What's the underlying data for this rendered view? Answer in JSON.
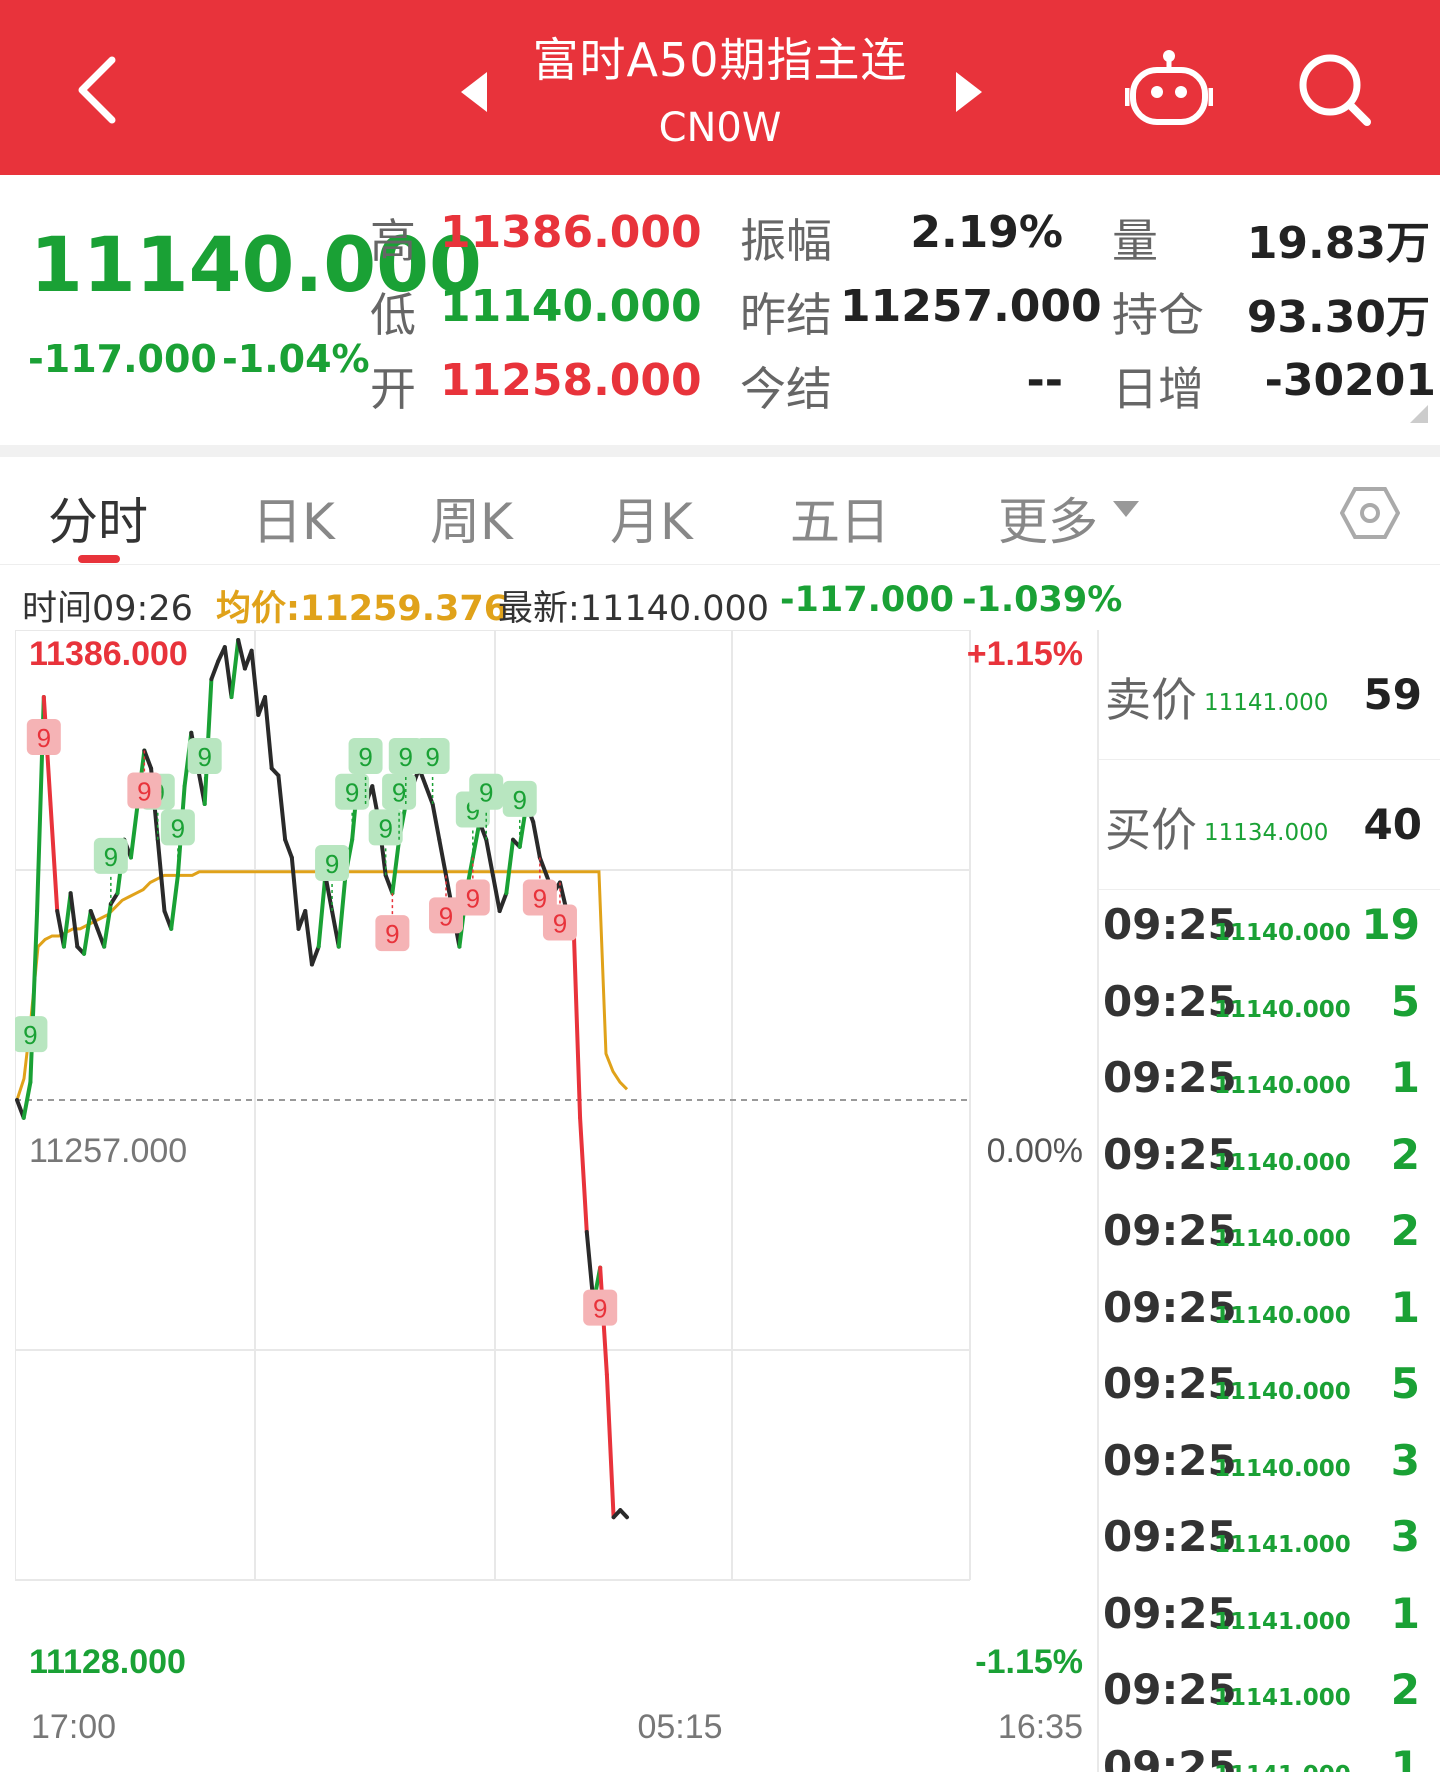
{
  "header": {
    "title": "富时A50期指主连",
    "subtitle": "CN0W",
    "icons": [
      "back-arrow",
      "prev-triangle",
      "next-triangle",
      "robot-assistant",
      "search"
    ],
    "bg_color": "#e8333b"
  },
  "quote": {
    "last": "11140.000",
    "change": "-117.000",
    "change_pct": "-1.04%",
    "rows": [
      {
        "label": "高",
        "value": "11386.000",
        "label2": "振幅",
        "value2": "2.19%",
        "label3": "量",
        "value3": "19.83万"
      },
      {
        "label": "低",
        "value": "11140.000",
        "label2": "昨结",
        "value2": "11257.000",
        "label3": "持仓",
        "value3": "93.30万"
      },
      {
        "label": "开",
        "value": "11258.000",
        "label2": "今结",
        "value2": "--",
        "label3": "日增",
        "value3": "-30201"
      }
    ]
  },
  "tabs": [
    "分时",
    "日K",
    "周K",
    "月K",
    "五日",
    "更多"
  ],
  "info": {
    "time": "时间09:26",
    "avg": "均价:11259.376",
    "latest": "最新:11140.000",
    "change": "-117.000",
    "change_pct": "-1.039%"
  },
  "chart_data": {
    "type": "line",
    "y_max_label": "11386.000",
    "y_mid_label": "11257.000",
    "y_min_label": "11128.000",
    "pct_max_label": "+1.15%",
    "pct_mid_label": "0.00%",
    "pct_min_label": "-1.15%",
    "x_labels": [
      "17:00",
      "05:15",
      "16:35"
    ],
    "ylim": [
      11128,
      11386
    ],
    "reference": 11257,
    "price": [
      11257,
      11252,
      11262,
      11310,
      11370,
      11340,
      11310,
      11300,
      11315,
      11300,
      11298,
      11310,
      11305,
      11300,
      11312,
      11315,
      11330,
      11325,
      11340,
      11355,
      11350,
      11330,
      11310,
      11305,
      11320,
      11345,
      11360,
      11350,
      11340,
      11375,
      11380,
      11384,
      11370,
      11386,
      11378,
      11383,
      11365,
      11370,
      11350,
      11348,
      11330,
      11325,
      11305,
      11310,
      11295,
      11300,
      11320,
      11310,
      11300,
      11320,
      11330,
      11350,
      11340,
      11345,
      11335,
      11320,
      11315,
      11330,
      11340,
      11345,
      11350,
      11345,
      11340,
      11330,
      11320,
      11310,
      11300,
      11315,
      11325,
      11335,
      11330,
      11320,
      11310,
      11315,
      11330,
      11328,
      11340,
      11335,
      11325,
      11320,
      11315,
      11318,
      11310,
      11308,
      11252,
      11220,
      11200,
      11210,
      11180,
      11140,
      11142,
      11140
    ],
    "avg_price": [
      11257,
      11263,
      11280,
      11300,
      11302,
      11303,
      11303,
      11304,
      11305,
      11305,
      11306,
      11307,
      11308,
      11309,
      11311,
      11313,
      11314,
      11315,
      11316,
      11318,
      11319,
      11320,
      11320,
      11320,
      11320,
      11320,
      11321,
      11321,
      11321,
      11321,
      11321,
      11321,
      11321,
      11321,
      11321,
      11321,
      11321,
      11321,
      11321,
      11321,
      11321,
      11321,
      11321,
      11321,
      11321,
      11321,
      11321,
      11321,
      11321,
      11321,
      11321,
      11321,
      11321,
      11321,
      11321,
      11321,
      11321,
      11321,
      11321,
      11321,
      11321,
      11321,
      11321,
      11321,
      11321,
      11321,
      11321,
      11321,
      11321,
      11321,
      11321,
      11321,
      11321,
      11321,
      11321,
      11321,
      11321,
      11321,
      11321,
      11321,
      11321,
      11321,
      11321,
      11321,
      11270,
      11265,
      11262,
      11260
    ],
    "top_markers": [
      2,
      14,
      21,
      24,
      28,
      47,
      50,
      52,
      55,
      57,
      58,
      62,
      68,
      70,
      75
    ],
    "bottom_markers": [
      4,
      19,
      56,
      64,
      68,
      78,
      81,
      87
    ],
    "marker_label": "9"
  },
  "orderbook": {
    "ask": {
      "label": "卖价",
      "price": "11141.000",
      "volume": "59"
    },
    "bid": {
      "label": "买价",
      "price": "11134.000",
      "volume": "40"
    },
    "trades": [
      {
        "time": "09:25",
        "price": "11140.000",
        "volume": "19"
      },
      {
        "time": "09:25",
        "price": "11140.000",
        "volume": "5"
      },
      {
        "time": "09:25",
        "price": "11140.000",
        "volume": "1"
      },
      {
        "time": "09:25",
        "price": "11140.000",
        "volume": "2"
      },
      {
        "time": "09:25",
        "price": "11140.000",
        "volume": "2"
      },
      {
        "time": "09:25",
        "price": "11140.000",
        "volume": "1"
      },
      {
        "time": "09:25",
        "price": "11140.000",
        "volume": "5"
      },
      {
        "time": "09:25",
        "price": "11140.000",
        "volume": "3"
      },
      {
        "time": "09:25",
        "price": "11141.000",
        "volume": "3"
      },
      {
        "time": "09:25",
        "price": "11141.000",
        "volume": "1"
      },
      {
        "time": "09:25",
        "price": "11141.000",
        "volume": "2"
      },
      {
        "time": "09:25",
        "price": "11141.000",
        "volume": "1"
      }
    ]
  },
  "colors": {
    "up": "#e8333b",
    "down": "#1aa135",
    "avg": "#e0a21a",
    "line": "#2a2a2a"
  }
}
